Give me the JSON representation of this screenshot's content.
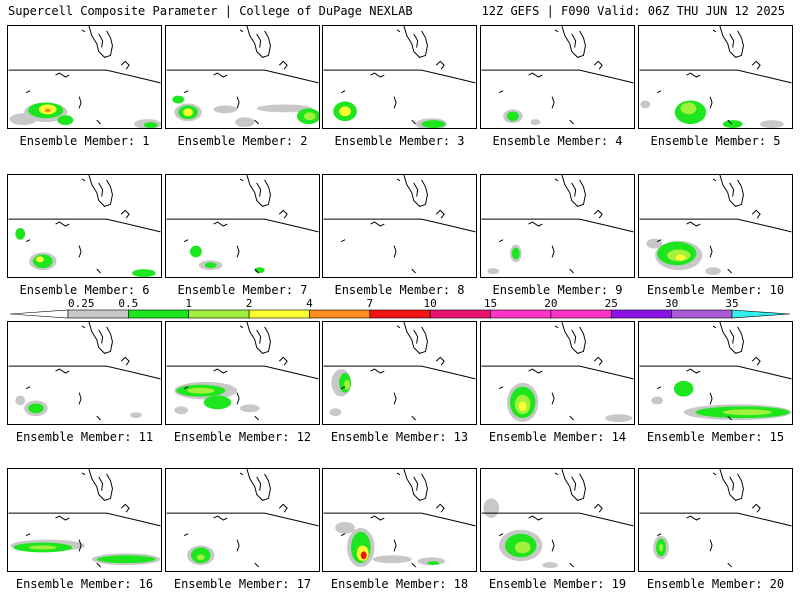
{
  "header": {
    "left": "Supercell Composite Parameter | College of DuPage NEXLAB",
    "right": "12Z GEFS | F090 Valid: 06Z THU JUN 12 2025"
  },
  "colors": {
    "gray": "#c8c8c8",
    "green": "#1ee61e",
    "lime": "#a0f03c",
    "yellow": "#ffff32",
    "orange": "#ff8c1e",
    "red": "#f01414",
    "deep_pink": "#e6146e",
    "magenta": "#ff32c8",
    "purple": "#8c14e6",
    "violet": "#aa5ad2",
    "cyan": "#32f0f0",
    "map_line": "#000000"
  },
  "colorbar": {
    "ticks": [
      "0.25",
      "0.5",
      "1",
      "2",
      "4",
      "7",
      "10",
      "15",
      "20",
      "25",
      "30",
      "35"
    ],
    "segment_colors": [
      "#ffffff",
      "#c8c8c8",
      "#1ee61e",
      "#a0f03c",
      "#ffff32",
      "#ff8c1e",
      "#f01414",
      "#e6146e",
      "#ff32c8",
      "#ff32c8",
      "#8c14e6",
      "#aa5ad2",
      "#32f0f0"
    ]
  },
  "panels": [
    {
      "label": "Ensemble Member: 1"
    },
    {
      "label": "Ensemble Member: 2"
    },
    {
      "label": "Ensemble Member: 3"
    },
    {
      "label": "Ensemble Member: 4"
    },
    {
      "label": "Ensemble Member: 5"
    },
    {
      "label": "Ensemble Member: 6"
    },
    {
      "label": "Ensemble Member: 7"
    },
    {
      "label": "Ensemble Member: 8"
    },
    {
      "label": "Ensemble Member: 9"
    },
    {
      "label": "Ensemble Member: 10"
    },
    {
      "label": "Ensemble Member: 11"
    },
    {
      "label": "Ensemble Member: 12"
    },
    {
      "label": "Ensemble Member: 13"
    },
    {
      "label": "Ensemble Member: 14"
    },
    {
      "label": "Ensemble Member: 15"
    },
    {
      "label": "Ensemble Member: 16"
    },
    {
      "label": "Ensemble Member: 17"
    },
    {
      "label": "Ensemble Member: 18"
    },
    {
      "label": "Ensemble Member: 19"
    },
    {
      "label": "Ensemble Member: 20"
    }
  ]
}
